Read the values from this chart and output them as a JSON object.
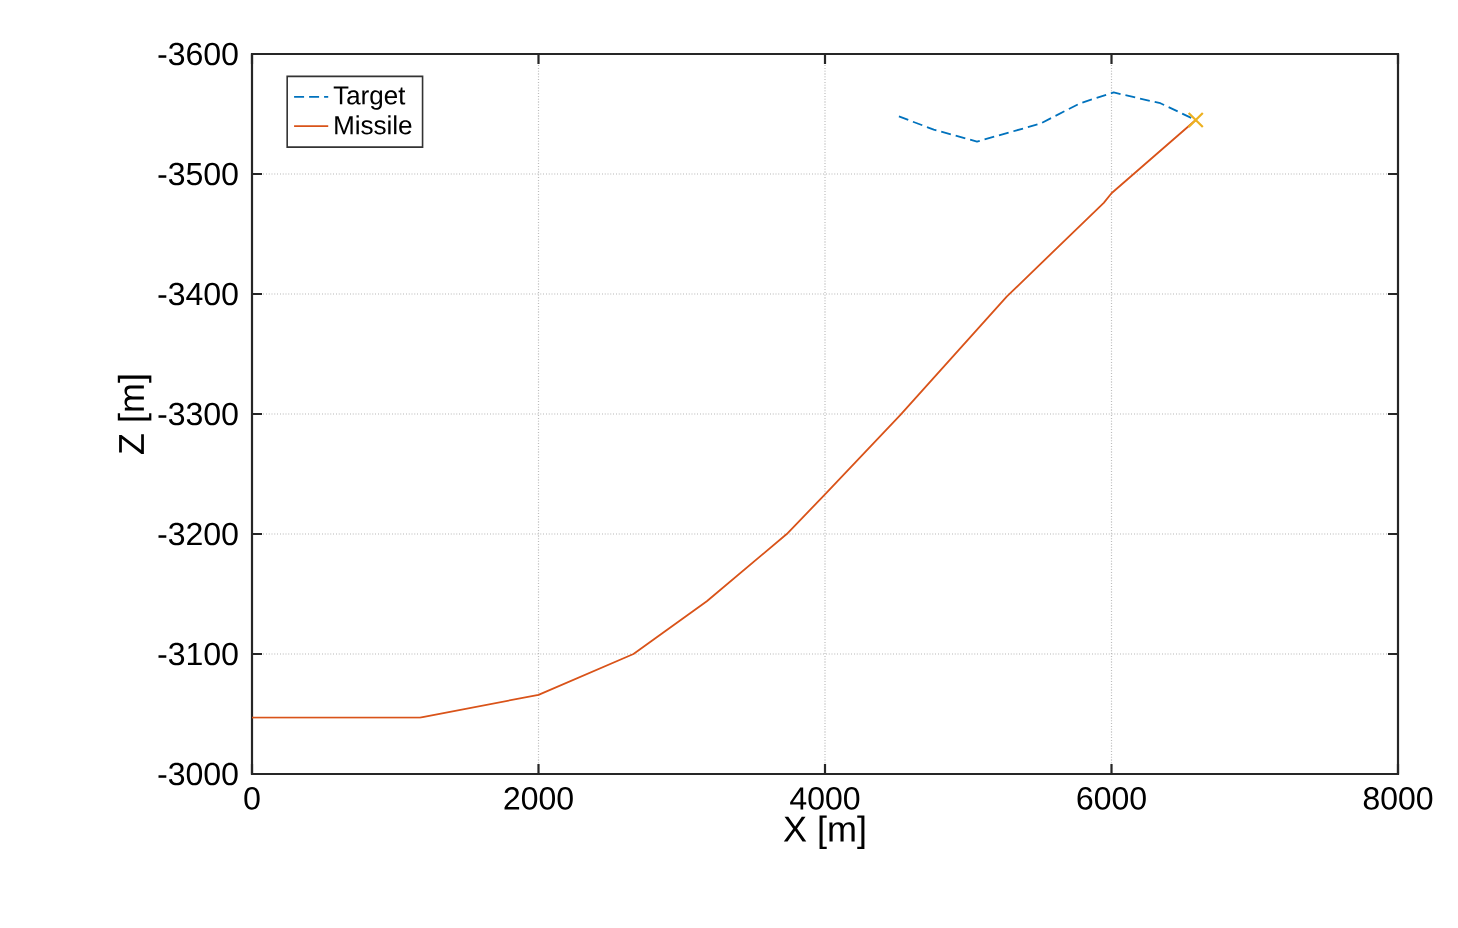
{
  "chart_data": {
    "type": "line",
    "xlabel": "X [m]",
    "ylabel": "Z [m]",
    "xlim": [
      0,
      8000
    ],
    "xticks": [
      0,
      2000,
      4000,
      6000,
      8000
    ],
    "ylim": [
      -3000,
      -3600
    ],
    "yticks": [
      -3000,
      -3100,
      -3200,
      -3300,
      -3400,
      -3500,
      -3600
    ],
    "grid": true,
    "legend": "top left",
    "series": [
      {
        "name": "Target",
        "color": "#0072bd",
        "line_style": "dashed",
        "x": [
          4516,
          4759,
          5061,
          5503,
          5782,
          6015,
          6341,
          6588
        ],
        "values": [
          -3548,
          -3537,
          -3527,
          -3542,
          -3559,
          -3568,
          -3559,
          -3545
        ]
      },
      {
        "name": "Missile",
        "color": "#d95319",
        "line_style": "solid",
        "x": [
          0,
          1173,
          2000,
          2663,
          3175,
          3733,
          4000,
          4525,
          5270,
          5946,
          6000,
          6588
        ],
        "values": [
          -3047,
          -3047,
          -3066,
          -3100,
          -3144,
          -3200,
          -3233,
          -3299,
          -3398,
          -3476,
          -3484,
          -3545
        ]
      },
      {
        "type": "scatter",
        "marker": "cross",
        "color": "#edb120",
        "x": [
          6588
        ],
        "values": [
          -3545
        ]
      }
    ]
  }
}
